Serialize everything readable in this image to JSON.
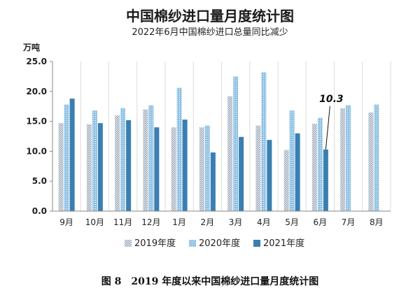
{
  "chart_data": {
    "type": "bar",
    "title": "中国棉纱进口量月度统计图",
    "subtitle": "2022年6月中国棉纱进口总量同比减少",
    "ylabel": "万吨",
    "xlabel": "",
    "ylim": [
      0,
      25
    ],
    "yticks": [
      "0.0",
      "5.0",
      "10.0",
      "15.0",
      "20.0",
      "25.0"
    ],
    "categories": [
      "9月",
      "10月",
      "11月",
      "12月",
      "1月",
      "2月",
      "3月",
      "4月",
      "5月",
      "6月",
      "7月",
      "8月"
    ],
    "series": [
      {
        "name": "2019年度",
        "color": "#a9b8cc",
        "pattern": "diagonal-stripes",
        "values": [
          14.7,
          14.5,
          16.0,
          17.0,
          14.0,
          14.0,
          19.2,
          14.3,
          10.2,
          14.6,
          17.2,
          16.5
        ]
      },
      {
        "name": "2020年度",
        "color": "#8fc1e3",
        "pattern": "dots",
        "values": [
          17.8,
          16.8,
          17.2,
          17.7,
          20.6,
          14.3,
          22.5,
          23.2,
          16.8,
          15.6,
          17.7,
          17.8
        ]
      },
      {
        "name": "2021年度",
        "color": "#3a7fb1",
        "pattern": "solid",
        "values": [
          18.8,
          14.7,
          15.2,
          14.0,
          15.3,
          9.8,
          12.4,
          11.9,
          13.0,
          10.3,
          null,
          null
        ]
      }
    ],
    "annotation": {
      "text": "10.3",
      "category": "6月",
      "series": "2021年度"
    },
    "grid": "vertical category separators",
    "legend_position": "bottom"
  },
  "caption": "图 8　2019 年度以来中国棉纱进口量月度统计图"
}
